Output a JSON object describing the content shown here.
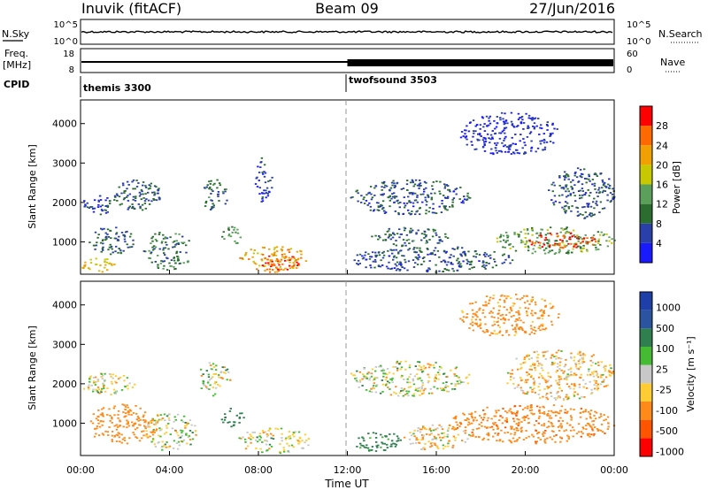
{
  "header": {
    "station": "Inuvik (fitACF)",
    "beam": "Beam 09",
    "date": "27/Jun/2016"
  },
  "top_panels": {
    "nsky_label": "N.Sky",
    "nsearch_label": "N.Search",
    "nsky_ticks": [
      "10^5",
      "10^0"
    ],
    "nsearch_ticks": [
      "10^5",
      "10^0"
    ],
    "freq_label": "Freq.",
    "freq_unit": "[MHz]",
    "freq_ticks": [
      "18",
      "8"
    ],
    "nave_label": "Nave",
    "nave_ticks": [
      "60",
      "0"
    ],
    "cpid_label": "CPID",
    "cpid_segments": [
      {
        "name": "themis 3300",
        "start_hour": 0
      },
      {
        "name": "twofsound 3503",
        "start_hour": 12
      }
    ]
  },
  "x_axis": {
    "label": "Time UT",
    "ticks": [
      "00:00",
      "04:00",
      "08:00",
      "12:00",
      "16:00",
      "20:00",
      "00:00"
    ],
    "range_hours": [
      0,
      24
    ]
  },
  "colors": {
    "power": [
      "#1a1aff",
      "#2a3fa8",
      "#2a6d2f",
      "#5a9f5a",
      "#c8c800",
      "#f0a000",
      "#ff6a00",
      "#ff0000"
    ],
    "velocity": [
      "#ff0000",
      "#ff5500",
      "#ff8a1a",
      "#ffcc33",
      "#c8c8c8",
      "#44bb33",
      "#2f7f4f",
      "#2a53a0",
      "#1e3fa8"
    ]
  },
  "chart_data": [
    {
      "type": "heatmap",
      "name": "power",
      "ylabel": "Slant Range [km]",
      "yticks": [
        "1000",
        "2000",
        "3000",
        "4000"
      ],
      "ylim": [
        180,
        4600
      ],
      "colorbar": {
        "label": "Power [dB]",
        "ticks": [
          "4",
          "8",
          "12",
          "16",
          "20",
          "24",
          "28"
        ],
        "range": [
          0,
          32
        ]
      },
      "blobs": [
        {
          "t0": 0.0,
          "t1": 1.6,
          "r0": 250,
          "r1": 600,
          "value": 20
        },
        {
          "t0": 0.3,
          "t1": 2.4,
          "r0": 700,
          "r1": 1400,
          "value": 8
        },
        {
          "t0": 0.0,
          "t1": 1.6,
          "r0": 1700,
          "r1": 2200,
          "value": 6
        },
        {
          "t0": 1.5,
          "t1": 3.6,
          "r0": 1800,
          "r1": 2600,
          "value": 8
        },
        {
          "t0": 2.8,
          "t1": 5.0,
          "r0": 300,
          "r1": 1300,
          "value": 10
        },
        {
          "t0": 5.4,
          "t1": 6.6,
          "r0": 1800,
          "r1": 2600,
          "value": 9
        },
        {
          "t0": 6.3,
          "t1": 7.2,
          "r0": 900,
          "r1": 1400,
          "value": 12
        },
        {
          "t0": 7.0,
          "t1": 10.3,
          "r0": 250,
          "r1": 900,
          "value": 22
        },
        {
          "t0": 8.0,
          "t1": 9.8,
          "r0": 300,
          "r1": 700,
          "value": 28
        },
        {
          "t0": 7.8,
          "t1": 8.6,
          "r0": 2000,
          "r1": 3200,
          "value": 5
        },
        {
          "t0": 12.1,
          "t1": 17.5,
          "r0": 1700,
          "r1": 2600,
          "value": 7
        },
        {
          "t0": 12.0,
          "t1": 19.5,
          "r0": 250,
          "r1": 900,
          "value": 7
        },
        {
          "t0": 13.0,
          "t1": 16.5,
          "r0": 900,
          "r1": 1400,
          "value": 9
        },
        {
          "t0": 18.5,
          "t1": 24.0,
          "r0": 700,
          "r1": 1400,
          "value": 14
        },
        {
          "t0": 20.0,
          "t1": 23.3,
          "r0": 850,
          "r1": 1250,
          "value": 28
        },
        {
          "t0": 21.0,
          "t1": 24.0,
          "r0": 1600,
          "r1": 2900,
          "value": 7
        },
        {
          "t0": 17.0,
          "t1": 21.5,
          "r0": 3200,
          "r1": 4300,
          "value": 4
        }
      ]
    },
    {
      "type": "heatmap",
      "name": "velocity",
      "ylabel": "Slant Range [km]",
      "yticks": [
        "1000",
        "2000",
        "3000",
        "4000"
      ],
      "ylim": [
        180,
        4600
      ],
      "colorbar": {
        "label": "Velocity [m s⁻¹]",
        "ticks": [
          "1000",
          "500",
          "100",
          "25",
          "-25",
          "-100",
          "-500",
          "-1000"
        ],
        "range": [
          -1250,
          1250
        ]
      },
      "blobs": [
        {
          "t0": 0.0,
          "t1": 2.4,
          "r0": 1700,
          "r1": 2300,
          "value": 0
        },
        {
          "t0": 0.2,
          "t1": 3.5,
          "r0": 500,
          "r1": 1500,
          "value": -300
        },
        {
          "t0": 2.8,
          "t1": 5.2,
          "r0": 300,
          "r1": 1300,
          "value": 0
        },
        {
          "t0": 5.2,
          "t1": 6.7,
          "r0": 1700,
          "r1": 2600,
          "value": 0
        },
        {
          "t0": 6.3,
          "t1": 7.3,
          "r0": 900,
          "r1": 1400,
          "value": 300
        },
        {
          "t0": 7.0,
          "t1": 10.3,
          "r0": 250,
          "r1": 900,
          "value": 0
        },
        {
          "t0": 12.0,
          "t1": 17.5,
          "r0": 1700,
          "r1": 2600,
          "value": 0
        },
        {
          "t0": 12.2,
          "t1": 14.5,
          "r0": 300,
          "r1": 800,
          "value": 200
        },
        {
          "t0": 14.5,
          "t1": 17.5,
          "r0": 300,
          "r1": 1000,
          "value": -60
        },
        {
          "t0": 16.5,
          "t1": 24.0,
          "r0": 500,
          "r1": 1500,
          "value": -400
        },
        {
          "t0": 19.0,
          "t1": 24.0,
          "r0": 1600,
          "r1": 2900,
          "value": -80
        },
        {
          "t0": 17.0,
          "t1": 21.5,
          "r0": 3200,
          "r1": 4300,
          "value": -200
        }
      ]
    }
  ]
}
